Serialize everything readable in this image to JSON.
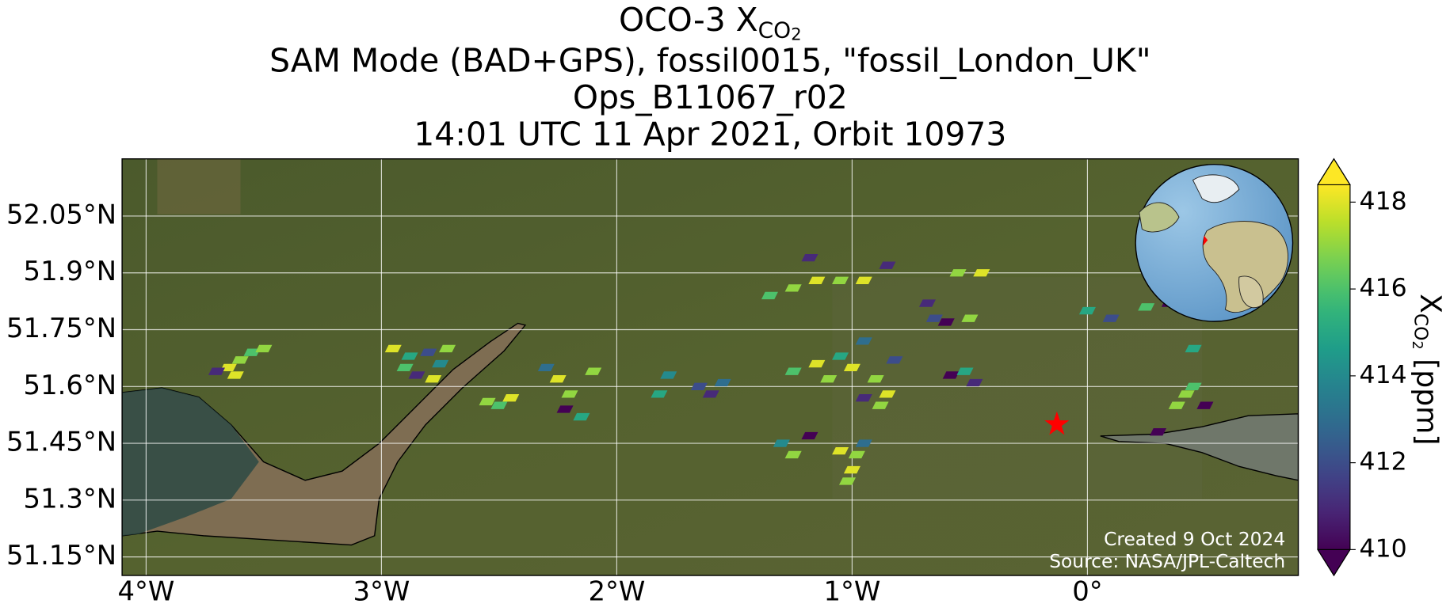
{
  "chart_data": {
    "type": "map",
    "title": {
      "prefix": "OCO-3 X",
      "subscript": "CO2"
    },
    "subtitle": [
      "SAM Mode (BAD+GPS), fossil0015, \"fossil_London_UK\"",
      "Ops_B11067_r02",
      "14:01 UTC 11 Apr 2021, Orbit 10973"
    ],
    "xlim": [
      -4.102,
      0.896
    ],
    "ylim": [
      51.101,
      52.201
    ],
    "xticks": [
      {
        "value": -4,
        "label": "4°W"
      },
      {
        "value": -3,
        "label": "3°W"
      },
      {
        "value": -2,
        "label": "2°W"
      },
      {
        "value": -1,
        "label": "1°W"
      },
      {
        "value": 0,
        "label": "0°"
      }
    ],
    "yticks": [
      {
        "value": 51.15,
        "label": "51.15°N"
      },
      {
        "value": 51.3,
        "label": "51.3°N"
      },
      {
        "value": 51.45,
        "label": "51.45°N"
      },
      {
        "value": 51.6,
        "label": "51.6°N"
      },
      {
        "value": 51.75,
        "label": "51.75°N"
      },
      {
        "value": 51.9,
        "label": "51.9°N"
      },
      {
        "value": 52.05,
        "label": "52.05°N"
      }
    ],
    "grid": true,
    "colormap": "viridis",
    "clim": [
      410,
      418.4
    ],
    "colorbar_ticks": [
      410,
      412,
      414,
      416,
      418
    ],
    "colorbar_label": {
      "symbol": "X",
      "subscript": "CO2",
      "unit": "[ppm]"
    },
    "target": {
      "lon": -0.13,
      "lat": 51.5,
      "color": "#ff0000"
    },
    "annotations": [
      "Created 9 Oct 2024",
      "Source: NASA/JPL-Caltech"
    ],
    "soundings": {
      "lon": [
        -3.65,
        -3.6,
        -3.55,
        -3.7,
        -3.62,
        -3.5,
        -2.95,
        -2.88,
        -2.8,
        -2.75,
        -2.85,
        -2.72,
        -2.9,
        -2.78,
        -2.55,
        -2.45,
        -2.5,
        -2.3,
        -2.25,
        -2.2,
        -2.15,
        -2.22,
        -2.1,
        -1.82,
        -1.78,
        -1.65,
        -1.55,
        -1.6,
        -1.35,
        -1.25,
        -1.15,
        -1.05,
        -0.95,
        -1.18,
        -0.85,
        -1.25,
        -1.15,
        -1.05,
        -0.95,
        -1.0,
        -0.9,
        -0.85,
        -0.95,
        -0.82,
        -1.1,
        -0.88,
        -0.58,
        -0.52,
        -0.48,
        -0.55,
        -0.45,
        -0.68,
        -0.65,
        -0.5,
        -0.6,
        -1.05,
        -0.98,
        -1.0,
        -1.02,
        -1.3,
        -1.25,
        -0.95,
        -1.18,
        0.0,
        0.1,
        0.25,
        0.35,
        0.45,
        0.45,
        0.5,
        0.38,
        0.3,
        0.42
      ],
      "lat": [
        51.65,
        51.67,
        51.69,
        51.64,
        51.63,
        51.7,
        51.7,
        51.68,
        51.69,
        51.66,
        51.63,
        51.7,
        51.65,
        51.62,
        51.56,
        51.57,
        51.55,
        51.65,
        51.62,
        51.58,
        51.52,
        51.54,
        51.64,
        51.58,
        51.63,
        51.6,
        51.61,
        51.58,
        51.84,
        51.86,
        51.88,
        51.88,
        51.88,
        51.94,
        51.92,
        51.64,
        51.66,
        51.68,
        51.72,
        51.65,
        51.62,
        51.58,
        51.57,
        51.67,
        51.62,
        51.55,
        51.63,
        51.64,
        51.61,
        51.9,
        51.9,
        51.82,
        51.78,
        51.78,
        51.77,
        51.43,
        51.42,
        51.38,
        51.35,
        51.45,
        51.42,
        51.45,
        51.47,
        51.8,
        51.78,
        51.81,
        51.82,
        51.7,
        51.6,
        51.55,
        51.55,
        51.48,
        51.58
      ],
      "values": [
        418,
        417,
        416,
        411,
        418,
        417,
        418,
        415,
        412,
        414,
        411,
        417,
        416,
        418,
        417,
        418,
        416,
        413,
        418,
        417,
        415,
        410,
        417,
        415,
        414,
        412,
        413,
        411,
        416,
        417,
        418,
        417,
        418,
        411,
        411,
        416,
        418,
        415,
        413,
        418,
        417,
        418,
        411,
        412,
        417,
        417,
        410,
        415,
        411,
        417,
        418,
        411,
        412,
        417,
        410,
        418,
        417,
        418,
        417,
        414,
        417,
        413,
        410,
        415,
        412,
        416,
        410,
        415,
        416,
        410,
        417,
        410,
        417
      ]
    }
  }
}
